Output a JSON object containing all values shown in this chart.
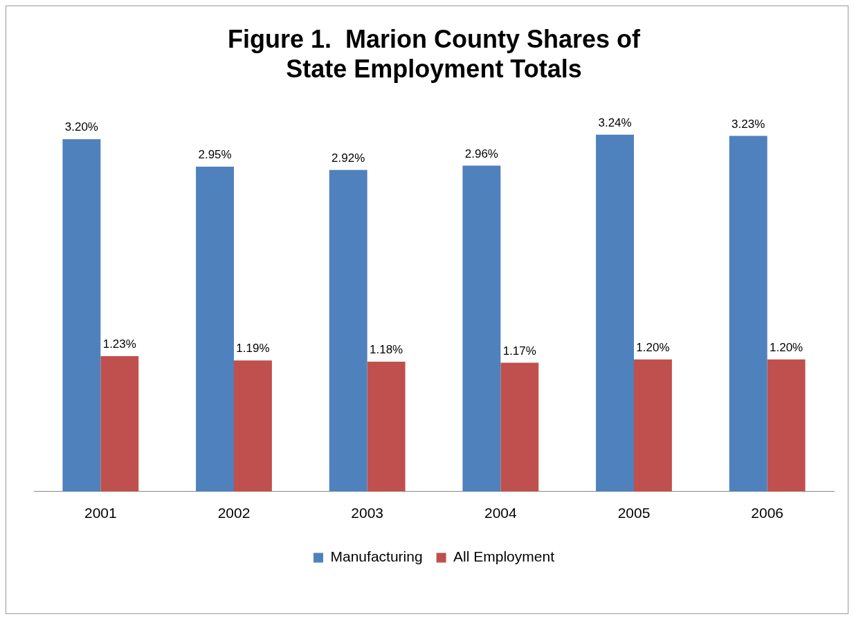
{
  "chart_data": {
    "type": "bar",
    "title": "Figure 1.  Marion County Shares of\nState Employment Totals",
    "categories": [
      "2001",
      "2002",
      "2003",
      "2004",
      "2005",
      "2006"
    ],
    "series": [
      {
        "name": "Manufacturing",
        "color": "#4f81bd",
        "values": [
          3.2,
          2.95,
          2.92,
          2.96,
          3.24,
          3.23
        ],
        "value_labels": [
          "3.20%",
          "2.95%",
          "2.92%",
          "2.96%",
          "3.24%",
          "3.23%"
        ]
      },
      {
        "name": "All Employment",
        "color": "#c0504d",
        "values": [
          1.23,
          1.19,
          1.18,
          1.17,
          1.2,
          1.2
        ],
        "value_labels": [
          "1.23%",
          "1.19%",
          "1.18%",
          "1.17%",
          "1.20%",
          "1.20%"
        ]
      }
    ],
    "legend": "bottom"
  }
}
